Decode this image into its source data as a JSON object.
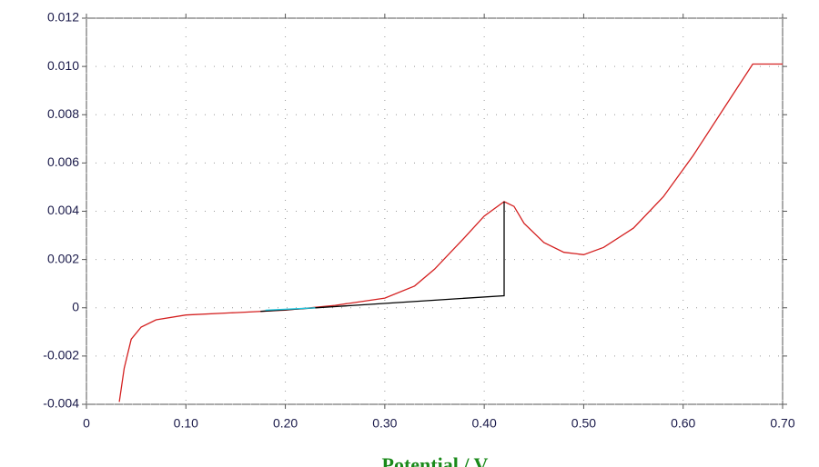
{
  "chart_data": {
    "type": "line",
    "x_label": "Potential / V",
    "xlim": [
      0,
      0.7
    ],
    "xticks": [
      0,
      {
        "value": 0.1,
        "label": "0.10"
      },
      {
        "value": 0.2,
        "label": "0.20"
      },
      {
        "value": 0.3,
        "label": "0.30"
      },
      {
        "value": 0.4,
        "label": "0.40"
      },
      {
        "value": 0.5,
        "label": "0.50"
      },
      {
        "value": 0.6,
        "label": "0.60"
      },
      {
        "value": 0.7,
        "label": "0.70"
      }
    ],
    "ylim": [
      -0.004,
      0.012
    ],
    "yticks": [
      -0.004,
      -0.002,
      0,
      0.002,
      0.004,
      0.006,
      {
        "value": 0.008,
        "label": "0.008"
      },
      {
        "value": 0.01,
        "label": "0.010"
      },
      0.012
    ],
    "grid": true,
    "series": [
      {
        "color": "#d42020",
        "x": [
          0.033,
          0.038,
          0.045,
          0.055,
          0.07,
          0.1,
          0.15,
          0.2,
          0.25,
          0.3,
          0.33,
          0.35,
          0.38,
          0.4,
          0.42,
          0.43,
          0.44,
          0.46,
          0.48,
          0.5,
          0.52,
          0.55,
          0.58,
          0.61,
          0.64,
          0.67,
          0.7
        ],
        "values": [
          -0.0039,
          -0.0025,
          -0.0013,
          -0.0008,
          -0.0005,
          -0.0003,
          -0.0002,
          -0.0001,
          0.0001,
          0.0004,
          0.0009,
          0.0016,
          0.0029,
          0.0038,
          0.0044,
          0.0042,
          0.0035,
          0.0027,
          0.0023,
          0.0022,
          0.0025,
          0.0033,
          0.0046,
          0.0063,
          0.0082,
          0.0101,
          0.0101
        ]
      },
      {
        "color": "#000000",
        "x": [
          0.175,
          0.42,
          0.42
        ],
        "values": [
          -0.00015,
          0.0005,
          0.0044
        ]
      },
      {
        "color": "#22c8e0",
        "x": [
          0.18,
          0.23
        ],
        "values": [
          -0.0001,
          0.0
        ]
      }
    ]
  }
}
